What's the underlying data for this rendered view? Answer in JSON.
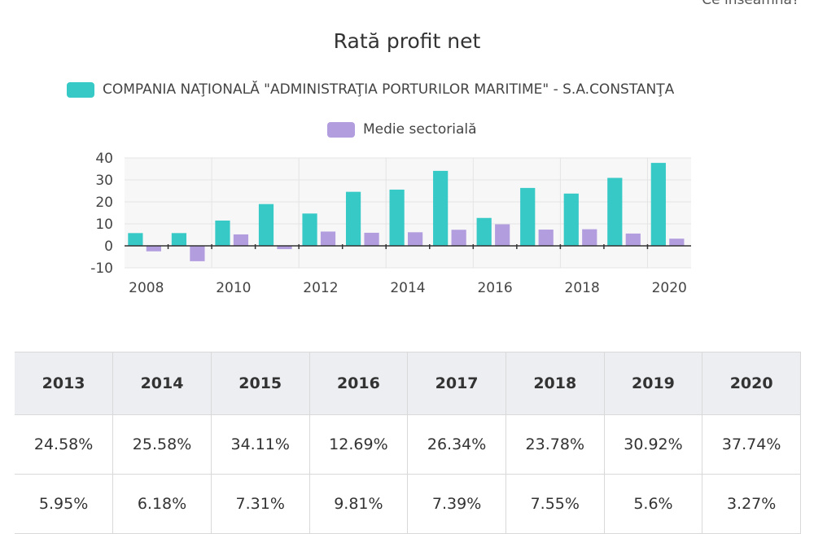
{
  "header": {
    "top_link": "Ce înseamnă?"
  },
  "chart_data": {
    "type": "bar",
    "title": "Rată profit net",
    "x": [
      2008,
      2009,
      2010,
      2011,
      2012,
      2013,
      2014,
      2015,
      2016,
      2017,
      2018,
      2019,
      2020
    ],
    "x_tick_labels": [
      "2008",
      "2010",
      "2012",
      "2014",
      "2016",
      "2018",
      "2020"
    ],
    "y_tick_labels": [
      "40",
      "30",
      "20",
      "10",
      "0",
      "-10"
    ],
    "ylim": [
      -10,
      40
    ],
    "grid": true,
    "legend_position": "top-center",
    "series": [
      {
        "name": "COMPANIA NAŢIONALĂ \"ADMINISTRAŢIA PORTURILOR MARITIME\" - S.A.CONSTANŢA",
        "color": "#36c9c6",
        "values": [
          5.8,
          5.8,
          11.5,
          19,
          14.7,
          24.58,
          25.58,
          34.11,
          12.69,
          26.34,
          23.78,
          30.92,
          37.74
        ]
      },
      {
        "name": "Medie sectorială",
        "color": "#b29ddf",
        "values": [
          -2.5,
          -7,
          5.2,
          -1.5,
          6.5,
          5.95,
          6.18,
          7.31,
          9.81,
          7.39,
          7.55,
          5.6,
          3.27
        ]
      }
    ]
  },
  "table": {
    "headers": [
      "2013",
      "2014",
      "2015",
      "2016",
      "2017",
      "2018",
      "2019",
      "2020"
    ],
    "rows": [
      [
        "24.58%",
        "25.58%",
        "34.11%",
        "12.69%",
        "26.34%",
        "23.78%",
        "30.92%",
        "37.74%"
      ],
      [
        "5.95%",
        "6.18%",
        "7.31%",
        "9.81%",
        "7.39%",
        "7.55%",
        "5.6%",
        "3.27%"
      ]
    ]
  }
}
